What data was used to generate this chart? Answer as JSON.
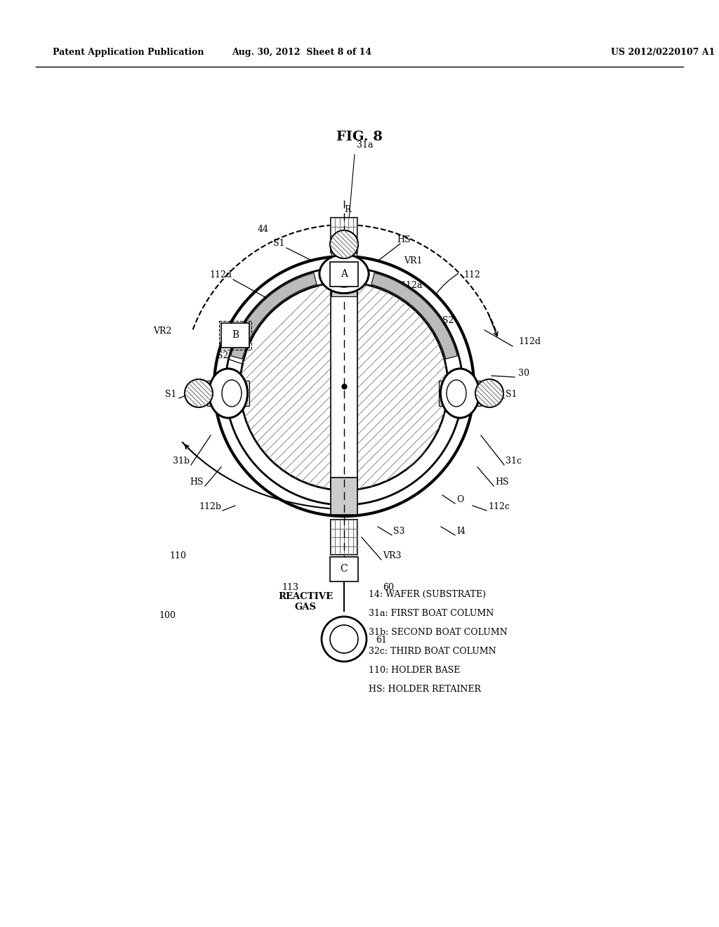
{
  "title": "FIG. 8",
  "header_left": "Patent Application Publication",
  "header_center": "Aug. 30, 2012  Sheet 8 of 14",
  "header_right": "US 2012/0220107 A1",
  "bg_color": "#ffffff",
  "legend_lines": [
    "14: WAFER (SUBSTRATE)",
    "31a: FIRST BOAT COLUMN",
    "31b: SECOND BOAT COLUMN",
    "32c: THIRD BOAT COLUMN",
    "110: HOLDER BASE",
    "HS: HOLDER RETAINER"
  ]
}
